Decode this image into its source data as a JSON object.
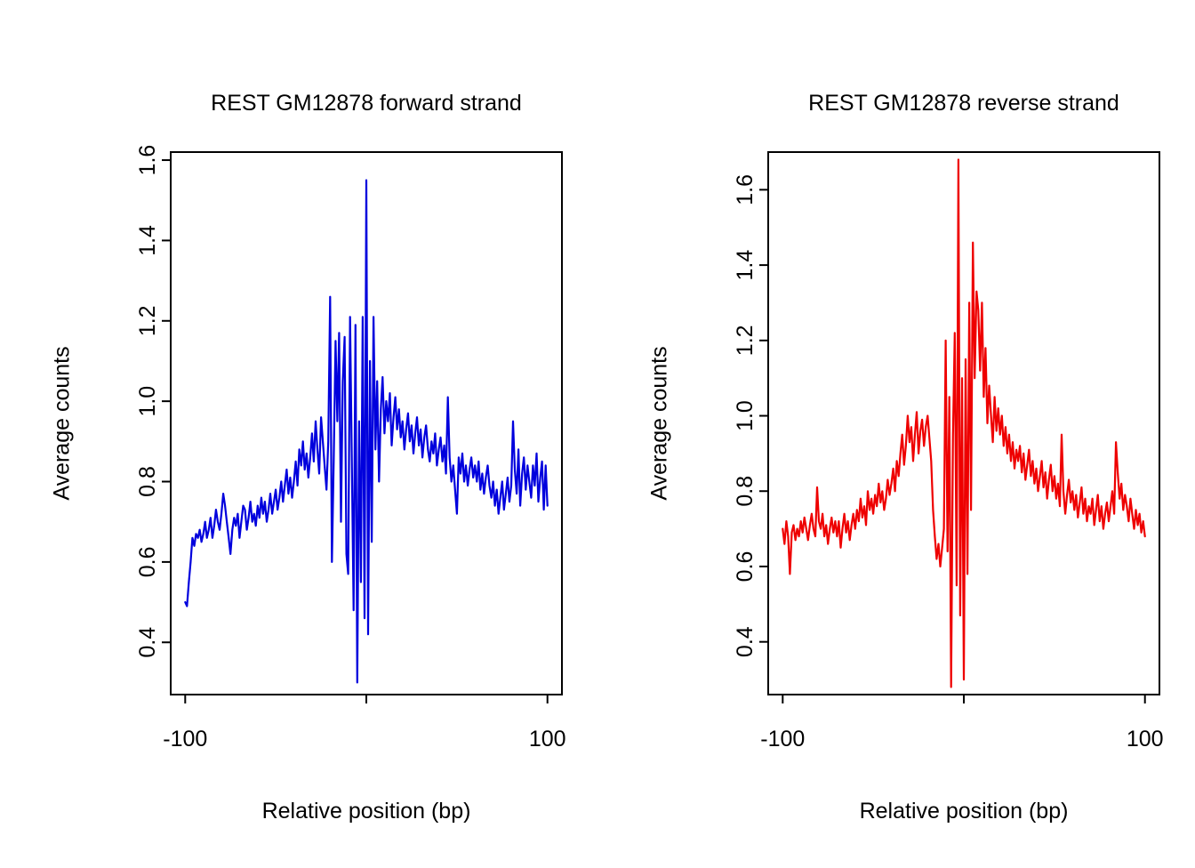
{
  "page": {
    "background": "#ffffff"
  },
  "chart_data": [
    {
      "type": "line",
      "title": "REST GM12878 forward strand",
      "xlabel": "Relative position (bp)",
      "ylabel": "Average counts",
      "color": "#0000dd",
      "x_start": -100,
      "x_step": 1,
      "xlim": [
        -108,
        108
      ],
      "ylim": [
        0.27,
        1.62
      ],
      "x_ticks": [
        -100,
        0,
        100
      ],
      "x_tick_labels": [
        "-100",
        "",
        "100"
      ],
      "y_ticks": [
        0.4,
        0.6,
        0.8,
        1.0,
        1.2,
        1.4,
        1.6
      ],
      "y_tick_labels": [
        "0.4",
        "0.6",
        "0.8",
        "1.0",
        "1.2",
        "1.4",
        "1.6"
      ],
      "values": [
        0.5,
        0.49,
        0.55,
        0.6,
        0.66,
        0.64,
        0.67,
        0.66,
        0.68,
        0.65,
        0.67,
        0.7,
        0.66,
        0.68,
        0.71,
        0.66,
        0.69,
        0.73,
        0.7,
        0.68,
        0.72,
        0.77,
        0.74,
        0.7,
        0.66,
        0.62,
        0.68,
        0.71,
        0.69,
        0.72,
        0.66,
        0.7,
        0.74,
        0.73,
        0.68,
        0.71,
        0.75,
        0.7,
        0.72,
        0.69,
        0.74,
        0.71,
        0.76,
        0.72,
        0.75,
        0.7,
        0.73,
        0.77,
        0.72,
        0.75,
        0.78,
        0.73,
        0.76,
        0.8,
        0.75,
        0.79,
        0.83,
        0.77,
        0.81,
        0.76,
        0.8,
        0.85,
        0.79,
        0.88,
        0.84,
        0.9,
        0.83,
        0.87,
        0.81,
        0.86,
        0.92,
        0.85,
        0.95,
        0.88,
        0.82,
        0.96,
        0.9,
        0.84,
        0.78,
        0.9,
        1.26,
        0.6,
        0.85,
        1.15,
        0.95,
        1.17,
        0.7,
        1.05,
        1.16,
        0.62,
        0.57,
        1.21,
        0.85,
        0.48,
        1.19,
        0.3,
        0.95,
        0.55,
        1.21,
        0.46,
        1.55,
        0.42,
        1.1,
        0.65,
        1.21,
        0.88,
        1.05,
        0.8,
        0.98,
        1.06,
        0.92,
        1.0,
        0.95,
        1.02,
        0.89,
        0.96,
        1.01,
        0.93,
        0.98,
        0.91,
        0.95,
        0.88,
        0.93,
        0.97,
        0.9,
        0.94,
        0.87,
        0.92,
        0.96,
        0.89,
        0.93,
        0.86,
        0.91,
        0.94,
        0.88,
        0.85,
        0.9,
        0.87,
        0.92,
        0.84,
        0.88,
        0.91,
        0.85,
        0.89,
        0.82,
        1.01,
        0.86,
        0.8,
        0.84,
        0.78,
        0.72,
        0.86,
        0.82,
        0.87,
        0.8,
        0.84,
        0.79,
        0.83,
        0.86,
        0.81,
        0.84,
        0.8,
        0.85,
        0.78,
        0.82,
        0.77,
        0.81,
        0.84,
        0.79,
        0.76,
        0.8,
        0.74,
        0.78,
        0.72,
        0.76,
        0.8,
        0.73,
        0.77,
        0.81,
        0.75,
        0.79,
        0.95,
        0.83,
        0.77,
        0.88,
        0.74,
        0.82,
        0.86,
        0.78,
        0.84,
        0.8,
        0.76,
        0.84,
        0.79,
        0.87,
        0.75,
        0.81,
        0.85,
        0.73,
        0.84,
        0.74
      ]
    },
    {
      "type": "line",
      "title": "REST GM12878 reverse strand",
      "xlabel": "Relative position (bp)",
      "ylabel": "Average counts",
      "color": "#ee0000",
      "x_start": -100,
      "x_step": 1,
      "xlim": [
        -108,
        108
      ],
      "ylim": [
        0.26,
        1.7
      ],
      "x_ticks": [
        -100,
        0,
        100
      ],
      "x_tick_labels": [
        "-100",
        "",
        "100"
      ],
      "y_ticks": [
        0.4,
        0.6,
        0.8,
        1.0,
        1.2,
        1.4,
        1.6
      ],
      "y_tick_labels": [
        "0.4",
        "0.6",
        "0.8",
        "1.0",
        "1.2",
        "1.4",
        "1.6"
      ],
      "values": [
        0.7,
        0.66,
        0.72,
        0.68,
        0.58,
        0.69,
        0.71,
        0.67,
        0.7,
        0.68,
        0.72,
        0.69,
        0.73,
        0.7,
        0.67,
        0.71,
        0.74,
        0.7,
        0.68,
        0.81,
        0.72,
        0.7,
        0.74,
        0.68,
        0.71,
        0.66,
        0.7,
        0.73,
        0.69,
        0.72,
        0.68,
        0.72,
        0.65,
        0.7,
        0.74,
        0.69,
        0.72,
        0.67,
        0.71,
        0.74,
        0.7,
        0.75,
        0.72,
        0.78,
        0.73,
        0.76,
        0.71,
        0.8,
        0.75,
        0.78,
        0.74,
        0.79,
        0.76,
        0.82,
        0.77,
        0.8,
        0.75,
        0.78,
        0.83,
        0.79,
        0.82,
        0.86,
        0.8,
        0.88,
        0.84,
        0.9,
        0.95,
        0.87,
        0.92,
        1.0,
        0.93,
        0.97,
        0.88,
        0.95,
        1.01,
        0.9,
        0.96,
        0.99,
        0.92,
        0.97,
        1.0,
        0.94,
        0.88,
        0.75,
        0.68,
        0.62,
        0.66,
        0.6,
        0.65,
        0.7,
        1.2,
        0.64,
        1.05,
        0.28,
        0.95,
        1.22,
        0.55,
        1.68,
        0.47,
        1.1,
        0.3,
        1.15,
        0.58,
        1.3,
        0.75,
        1.46,
        1.1,
        1.33,
        1.28,
        1.12,
        1.3,
        1.05,
        1.18,
        0.98,
        1.08,
        1.0,
        0.93,
        1.05,
        0.96,
        1.02,
        0.95,
        1.0,
        0.92,
        0.97,
        0.9,
        0.95,
        0.88,
        0.93,
        0.86,
        0.91,
        0.88,
        0.92,
        0.85,
        0.9,
        0.83,
        0.87,
        0.91,
        0.84,
        0.88,
        0.82,
        0.86,
        0.8,
        0.84,
        0.88,
        0.81,
        0.85,
        0.78,
        0.83,
        0.87,
        0.8,
        0.84,
        0.78,
        0.82,
        0.76,
        0.95,
        0.8,
        0.74,
        0.79,
        0.83,
        0.77,
        0.8,
        0.75,
        0.79,
        0.73,
        0.77,
        0.81,
        0.74,
        0.78,
        0.72,
        0.76,
        0.74,
        0.78,
        0.71,
        0.75,
        0.79,
        0.72,
        0.76,
        0.7,
        0.74,
        0.77,
        0.72,
        0.76,
        0.8,
        0.74,
        0.93,
        0.85,
        0.78,
        0.82,
        0.75,
        0.79,
        0.76,
        0.72,
        0.78,
        0.74,
        0.7,
        0.75,
        0.71,
        0.74,
        0.69,
        0.72,
        0.68
      ]
    }
  ]
}
